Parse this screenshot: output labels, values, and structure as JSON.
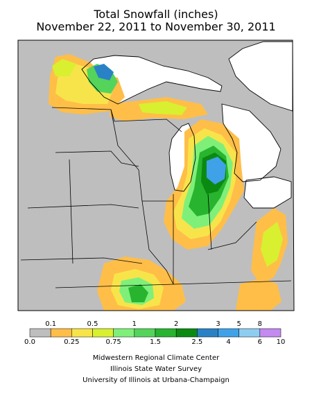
{
  "title_line1": "Total Snowfall (inches)",
  "title_line2": "November 22, 2011 to November 30, 2011",
  "legend": {
    "colors": [
      "#bebebe",
      "#ffbe48",
      "#f7e44a",
      "#d8f030",
      "#7ef07a",
      "#54d45a",
      "#28b42f",
      "#0b8a12",
      "#2a82c6",
      "#3fa2e8",
      "#8fcdf0",
      "#c48af0"
    ],
    "upper_labels": [
      "0.1",
      "0.5",
      "1",
      "2",
      "3",
      "5",
      "8"
    ],
    "lower_labels": [
      "0.0",
      "0.25",
      "0.75",
      "1.5",
      "2.5",
      "4",
      "6",
      "10"
    ]
  },
  "credits": [
    "Midwestern Regional Climate Center",
    "Illinois State Water Survey",
    "University of Illinois at Urbana-Champaign"
  ]
}
